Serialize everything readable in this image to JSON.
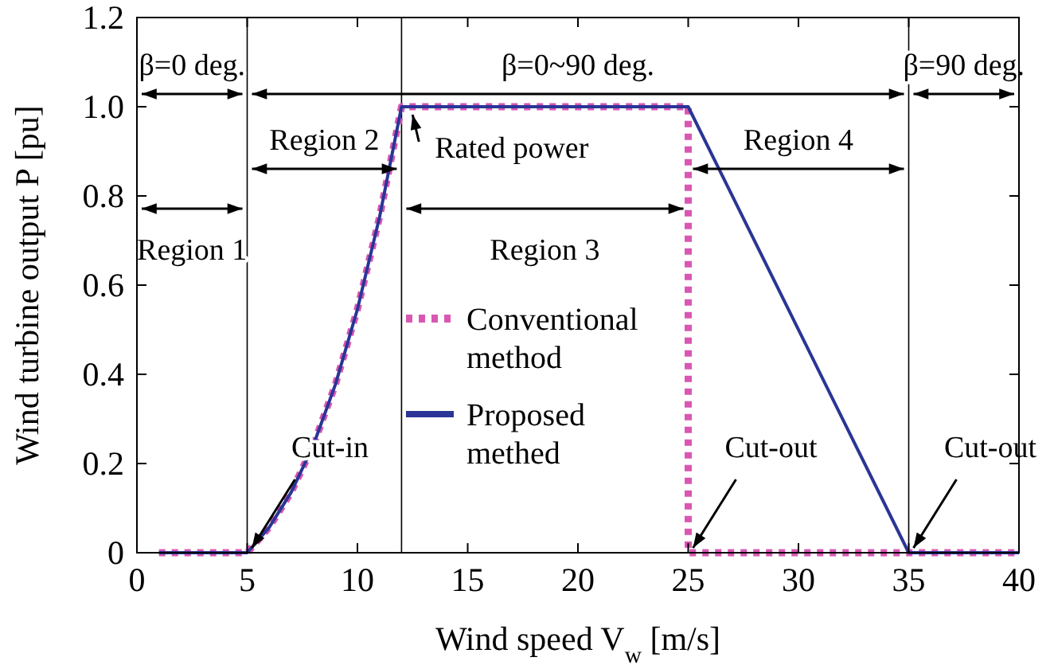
{
  "chart_data": {
    "type": "line",
    "xlabel": "Wind speed V$_{w}$ [m/s]",
    "ylabel": "Wind turbine output P [pu]",
    "xlim": [
      0,
      40
    ],
    "xticks": [
      0,
      5,
      10,
      15,
      20,
      25,
      30,
      35,
      40
    ],
    "ylim": [
      0,
      1.2
    ],
    "yticks": [
      0,
      0.2,
      0.4,
      0.6,
      0.8,
      {
        "value": 1,
        "label": "1.0"
      },
      1.2
    ],
    "grid": false,
    "legend": "center",
    "series": [
      {
        "name": "Conventional method",
        "color": "#d957b3",
        "line_style": "dotted",
        "x": [
          1,
          5,
          6,
          7,
          8,
          9,
          10,
          11,
          12,
          25,
          25,
          40
        ],
        "values": [
          0,
          0,
          0.057,
          0.136,
          0.241,
          0.377,
          0.546,
          0.752,
          1,
          1,
          0,
          0
        ]
      },
      {
        "name": "Proposed methed",
        "color": "#2a3596",
        "line_style": "solid",
        "x": [
          1,
          5,
          6,
          7,
          8,
          9,
          10,
          11,
          12,
          25,
          35,
          40
        ],
        "values": [
          0,
          0,
          0.057,
          0.136,
          0.241,
          0.377,
          0.546,
          0.752,
          1,
          1,
          0,
          0
        ]
      }
    ],
    "ref_lines": [
      {
        "axis": "x",
        "value": 5,
        "color": "#000000"
      },
      {
        "axis": "x",
        "value": 12,
        "color": "#000000"
      },
      {
        "axis": "x",
        "value": 35,
        "color": "#000000"
      }
    ],
    "annotations": [
      "β=0 deg.",
      "β=0~90 deg.",
      "β=90 deg.",
      "Region 1",
      "Region 2",
      "Region 3",
      "Region 4",
      {
        "text": "Rated power",
        "x": 12.5,
        "y": 1
      },
      {
        "text": "Cut-in",
        "x": 5,
        "y": 0
      },
      {
        "text": "Cut-out",
        "x": 25,
        "y": 0
      },
      {
        "text": "Cut-out",
        "x": 35,
        "y": 0
      }
    ]
  }
}
